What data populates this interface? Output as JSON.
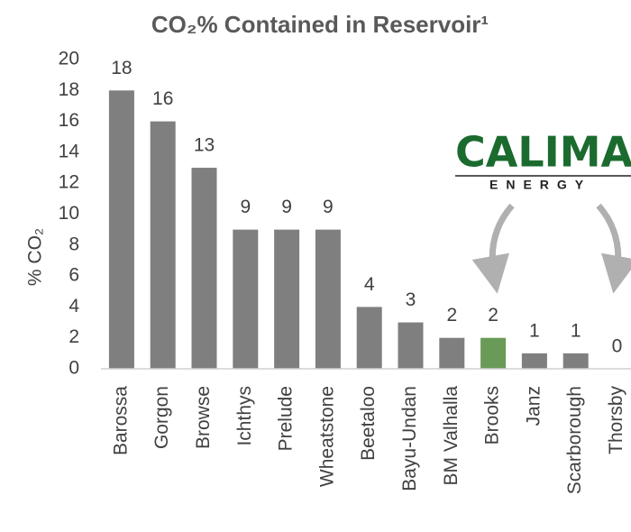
{
  "chart_data": {
    "type": "bar",
    "title": "CO₂% Contained in Reservoir¹",
    "y_label": "% CO₂",
    "annotations": [
      "CALIMA",
      "ENERGY"
    ],
    "categories": [
      "Barossa",
      "Gorgon",
      "Browse",
      "Ichthys",
      "Prelude",
      "Wheatstone",
      "Beetaloo",
      "Bayu-Undan",
      "BM Valhalla",
      "Brooks",
      "Janz",
      "Scarborough",
      "Thorsby"
    ],
    "values": [
      18,
      16,
      13,
      9,
      9,
      9,
      4,
      3,
      2,
      2,
      1,
      1,
      0
    ],
    "colors": [
      "#7f7f7f",
      "#7f7f7f",
      "#7f7f7f",
      "#7f7f7f",
      "#7f7f7f",
      "#7f7f7f",
      "#7f7f7f",
      "#7f7f7f",
      "#7f7f7f",
      "#6a9a58",
      "#7f7f7f",
      "#7f7f7f",
      "#7f7f7f"
    ],
    "ylim": [
      0,
      20
    ],
    "yticks": [
      0,
      2,
      4,
      6,
      8,
      10,
      12,
      14,
      16,
      18,
      20
    ],
    "grid": false
  }
}
